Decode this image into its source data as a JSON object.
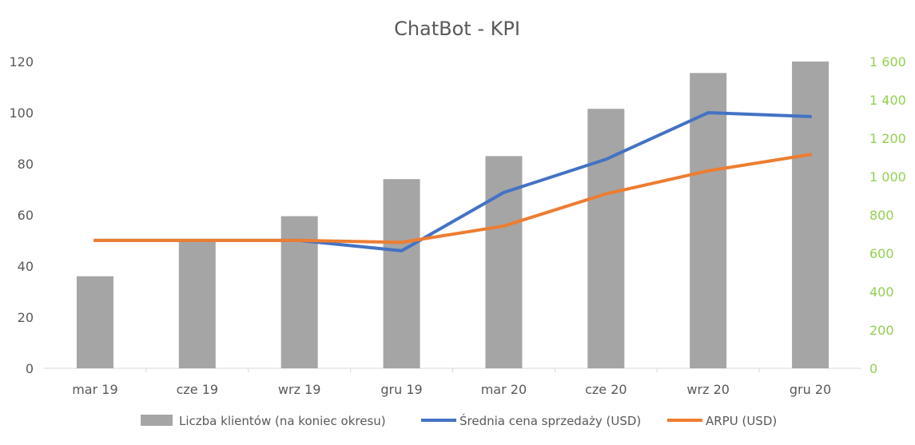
{
  "chart_data": {
    "type": "bar",
    "title": "ChatBot - KPI",
    "categories": [
      "mar 19",
      "cze 19",
      "wrz 19",
      "gru 19",
      "mar 20",
      "cze 20",
      "wrz 20",
      "gru 20"
    ],
    "series": [
      {
        "name": "Liczba klientów (na koniec okresu)",
        "type": "bar",
        "axis": "left",
        "color": "#a5a5a5",
        "values": [
          36,
          50,
          59.5,
          74,
          83,
          101.5,
          115.5,
          120
        ]
      },
      {
        "name": "Średnia cena sprzedaży (USD)",
        "type": "line",
        "axis": "right",
        "color": "#4472c4",
        "values": [
          667,
          667,
          667,
          613,
          917,
          1090,
          1333,
          1313
        ]
      },
      {
        "name": "ARPU (USD)",
        "type": "line",
        "axis": "right",
        "color": "#ed7d31",
        "values": [
          667,
          667,
          667,
          657,
          742,
          910,
          1030,
          1115
        ]
      }
    ],
    "y_left": {
      "min": 0,
      "max": 120,
      "ticks": [
        0,
        20,
        40,
        60,
        80,
        100,
        120
      ],
      "tick_labels": [
        "0",
        "20",
        "40",
        "60",
        "80",
        "100",
        "120"
      ]
    },
    "y_right": {
      "min": 0,
      "max": 1600,
      "ticks": [
        0,
        200,
        400,
        600,
        800,
        1000,
        1200,
        1400,
        1600
      ],
      "tick_labels": [
        "0",
        "200",
        "400",
        "600",
        "800",
        "1 000",
        "1 200",
        "1 400",
        "1 600"
      ],
      "color": "#92d050"
    },
    "grid": false,
    "legend_position": "bottom"
  }
}
